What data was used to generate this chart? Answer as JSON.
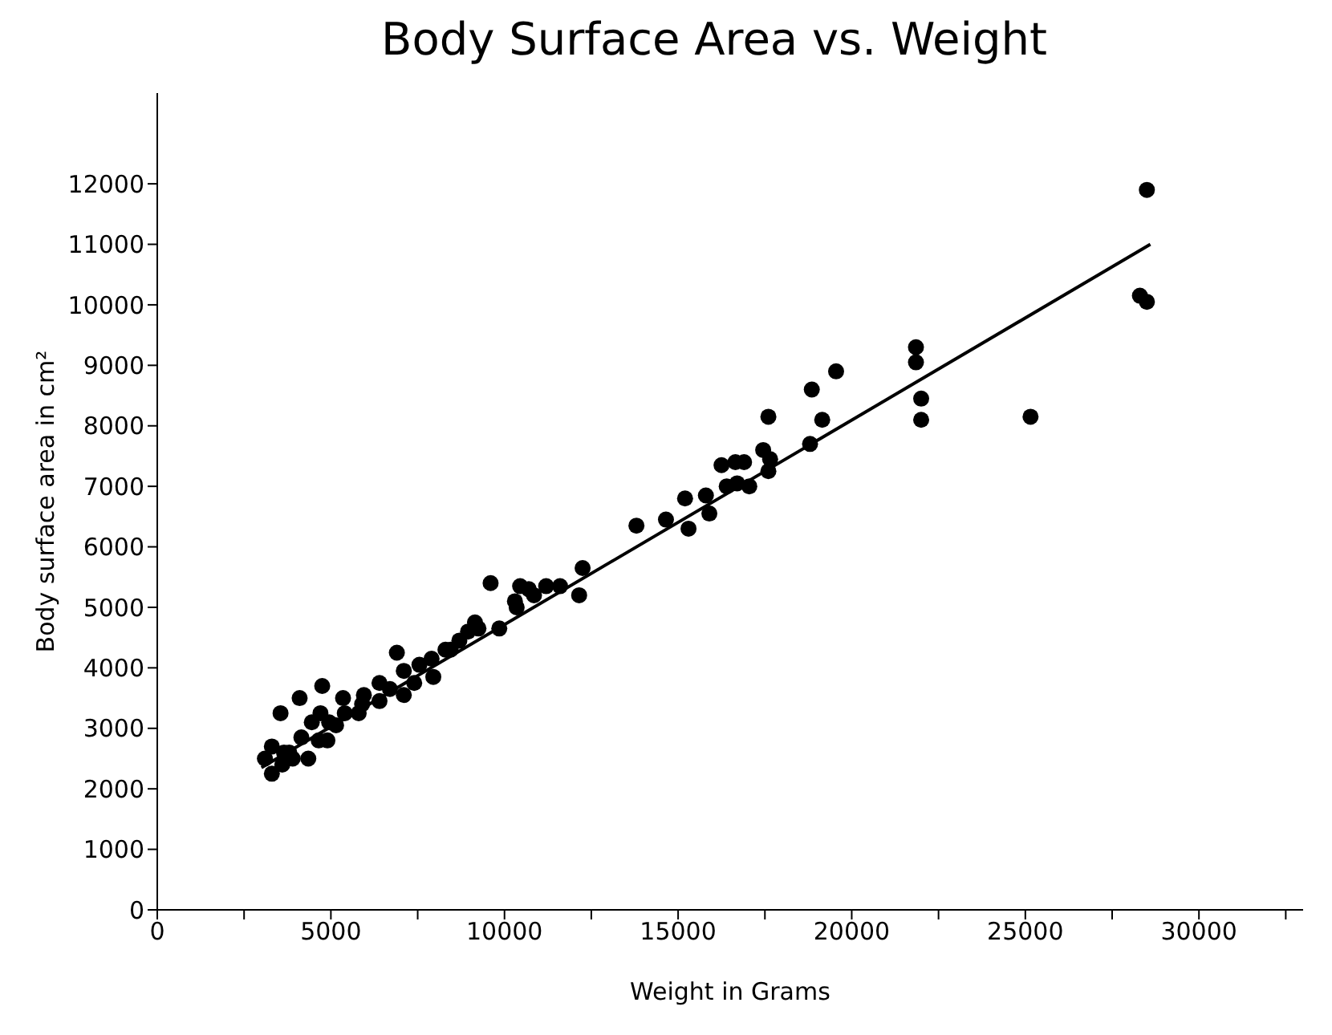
{
  "chart_data": {
    "type": "scatter",
    "title": "Body Surface Area vs. Weight",
    "xlabel": "Weight in Grams",
    "ylabel": "Body surface area in cm²",
    "xlim": [
      0,
      33000
    ],
    "xticks": [
      0,
      {
        "value": 2500,
        "label": null
      },
      5000,
      {
        "value": 7500,
        "label": null
      },
      10000,
      {
        "value": 12500,
        "label": null
      },
      15000,
      {
        "value": 17500,
        "label": null
      },
      20000,
      {
        "value": 22500,
        "label": null
      },
      25000,
      {
        "value": 27500,
        "label": null
      },
      30000,
      {
        "value": 32500,
        "label": null
      }
    ],
    "ylim": [
      0,
      13500
    ],
    "yticks": [
      0,
      1000,
      2000,
      3000,
      4000,
      5000,
      6000,
      7000,
      8000,
      9000,
      10000,
      11000,
      12000
    ],
    "grid": false,
    "legend": false,
    "marker": "circle",
    "series": [
      {
        "color": "#000000",
        "x": [
          3300,
          3100,
          3300,
          3600,
          3650,
          3800,
          3900,
          4150,
          4350,
          3550,
          4100,
          4750,
          4450,
          4650,
          4900,
          4700,
          4950,
          5150,
          5350,
          5400,
          5800,
          5950,
          5900,
          6400,
          6400,
          6700,
          6900,
          7100,
          7100,
          7400,
          7550,
          7900,
          7950,
          8300,
          8700,
          8450,
          8950,
          9150,
          9250,
          9600,
          9850,
          10300,
          10350,
          10450,
          10700,
          10850,
          11200,
          11600,
          12150,
          12250,
          13800,
          14650,
          15200,
          15300,
          15800,
          15900,
          16250,
          16400,
          16650,
          16700,
          16900,
          17050,
          17450,
          17600,
          17650,
          17600,
          18800,
          18850,
          19150,
          19550,
          21850,
          21850,
          22000,
          22000,
          25150,
          28300,
          28500,
          28500
        ],
        "values": [
          2250,
          2500,
          2700,
          2400,
          2600,
          2600,
          2500,
          2850,
          2500,
          3250,
          3500,
          3700,
          3100,
          2800,
          2800,
          3250,
          3100,
          3050,
          3500,
          3250,
          3250,
          3550,
          3400,
          3750,
          3450,
          3650,
          4250,
          3950,
          3550,
          3750,
          4050,
          4150,
          3850,
          4300,
          4450,
          4300,
          4600,
          4750,
          4650,
          5400,
          4650,
          5100,
          5000,
          5350,
          5300,
          5200,
          5350,
          5350,
          5200,
          5650,
          6350,
          6450,
          6800,
          6300,
          6850,
          6550,
          7350,
          7000,
          7400,
          7050,
          7400,
          7000,
          7600,
          7250,
          7450,
          8150,
          7700,
          8600,
          8100,
          8900,
          9300,
          9050,
          8450,
          8100,
          8150,
          10150,
          10050,
          11900
        ]
      },
      {
        "type": "line",
        "color": "#000000",
        "line_style": "solid",
        "marker": "none",
        "x": [
          3000,
          28600
        ],
        "values": [
          2350,
          11000
        ]
      }
    ]
  }
}
